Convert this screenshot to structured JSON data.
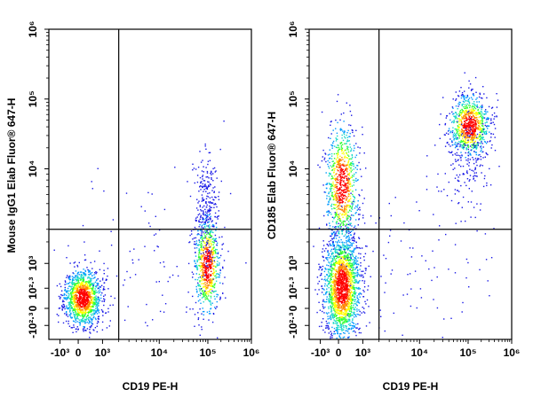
{
  "chart_data": [
    {
      "type": "scatter",
      "subtype": "flow-cytometry-density-dot-plot",
      "xlabel": "CD19 PE-H",
      "ylabel": "Mouse IgG1 Elab Fluor® 647-H",
      "x_scale": "biexponential",
      "y_scale": "biexponential",
      "x_ticks": [
        {
          "value": -1000,
          "label": "-10³"
        },
        {
          "value": 0,
          "label": "0"
        },
        {
          "value": 1000,
          "label": "10³"
        },
        {
          "value": 10000,
          "label": "10⁴"
        },
        {
          "value": 100000,
          "label": "10⁵"
        },
        {
          "value": 1000000,
          "label": "10⁶"
        }
      ],
      "y_ticks": [
        {
          "value": -200,
          "label": "-10²·³"
        },
        {
          "value": 0,
          "label": "0"
        },
        {
          "value": 200,
          "label": "10²·³"
        },
        {
          "value": 1000,
          "label": "10³"
        },
        {
          "value": 10000,
          "label": "10⁴"
        },
        {
          "value": 100000,
          "label": "10⁵"
        },
        {
          "value": 1000000,
          "label": "10⁶"
        }
      ],
      "xlim": [
        -1500,
        1000000
      ],
      "ylim": [
        -300,
        1000000
      ],
      "gates": {
        "x": 2000,
        "y": 3000
      },
      "populations": [
        {
          "x_center": 300,
          "y_center": 60,
          "density": "high"
        },
        {
          "x_center": 60000,
          "y_center": 250,
          "density": "medium"
        }
      ]
    },
    {
      "type": "scatter",
      "subtype": "flow-cytometry-density-dot-plot",
      "xlabel": "CD19 PE-H",
      "ylabel": "CD185 Elab Fluor® 647-H",
      "x_scale": "biexponential",
      "y_scale": "biexponential",
      "x_ticks": [
        {
          "value": -1000,
          "label": "-10³"
        },
        {
          "value": 0,
          "label": "0"
        },
        {
          "value": 1000,
          "label": "10³"
        },
        {
          "value": 10000,
          "label": "10⁴"
        },
        {
          "value": 100000,
          "label": "10⁵"
        },
        {
          "value": 1000000,
          "label": "10⁶"
        }
      ],
      "y_ticks": [
        {
          "value": -200,
          "label": "-10²·³"
        },
        {
          "value": 0,
          "label": "0"
        },
        {
          "value": 200,
          "label": "10²·³"
        },
        {
          "value": 1000,
          "label": "10³"
        },
        {
          "value": 10000,
          "label": "10⁴"
        },
        {
          "value": 100000,
          "label": "10⁵"
        },
        {
          "value": 1000000,
          "label": "10⁶"
        }
      ],
      "xlim": [
        -1500,
        1000000
      ],
      "ylim": [
        -300,
        1000000
      ],
      "gates": {
        "x": 2000,
        "y": 3000
      },
      "populations": [
        {
          "x_center": 300,
          "y_center": 140,
          "density": "very-high"
        },
        {
          "x_center": 300,
          "y_center": 8000,
          "density": "medium"
        },
        {
          "x_center": 70000,
          "y_center": 35000,
          "density": "high"
        }
      ]
    }
  ],
  "colors": {
    "density_ramp": [
      "#1a1ae6",
      "#0099ff",
      "#19d9c9",
      "#33ff33",
      "#ffff00",
      "#ff8800",
      "#ff0000"
    ],
    "gate_line": "#000000",
    "frame": "#000000"
  }
}
